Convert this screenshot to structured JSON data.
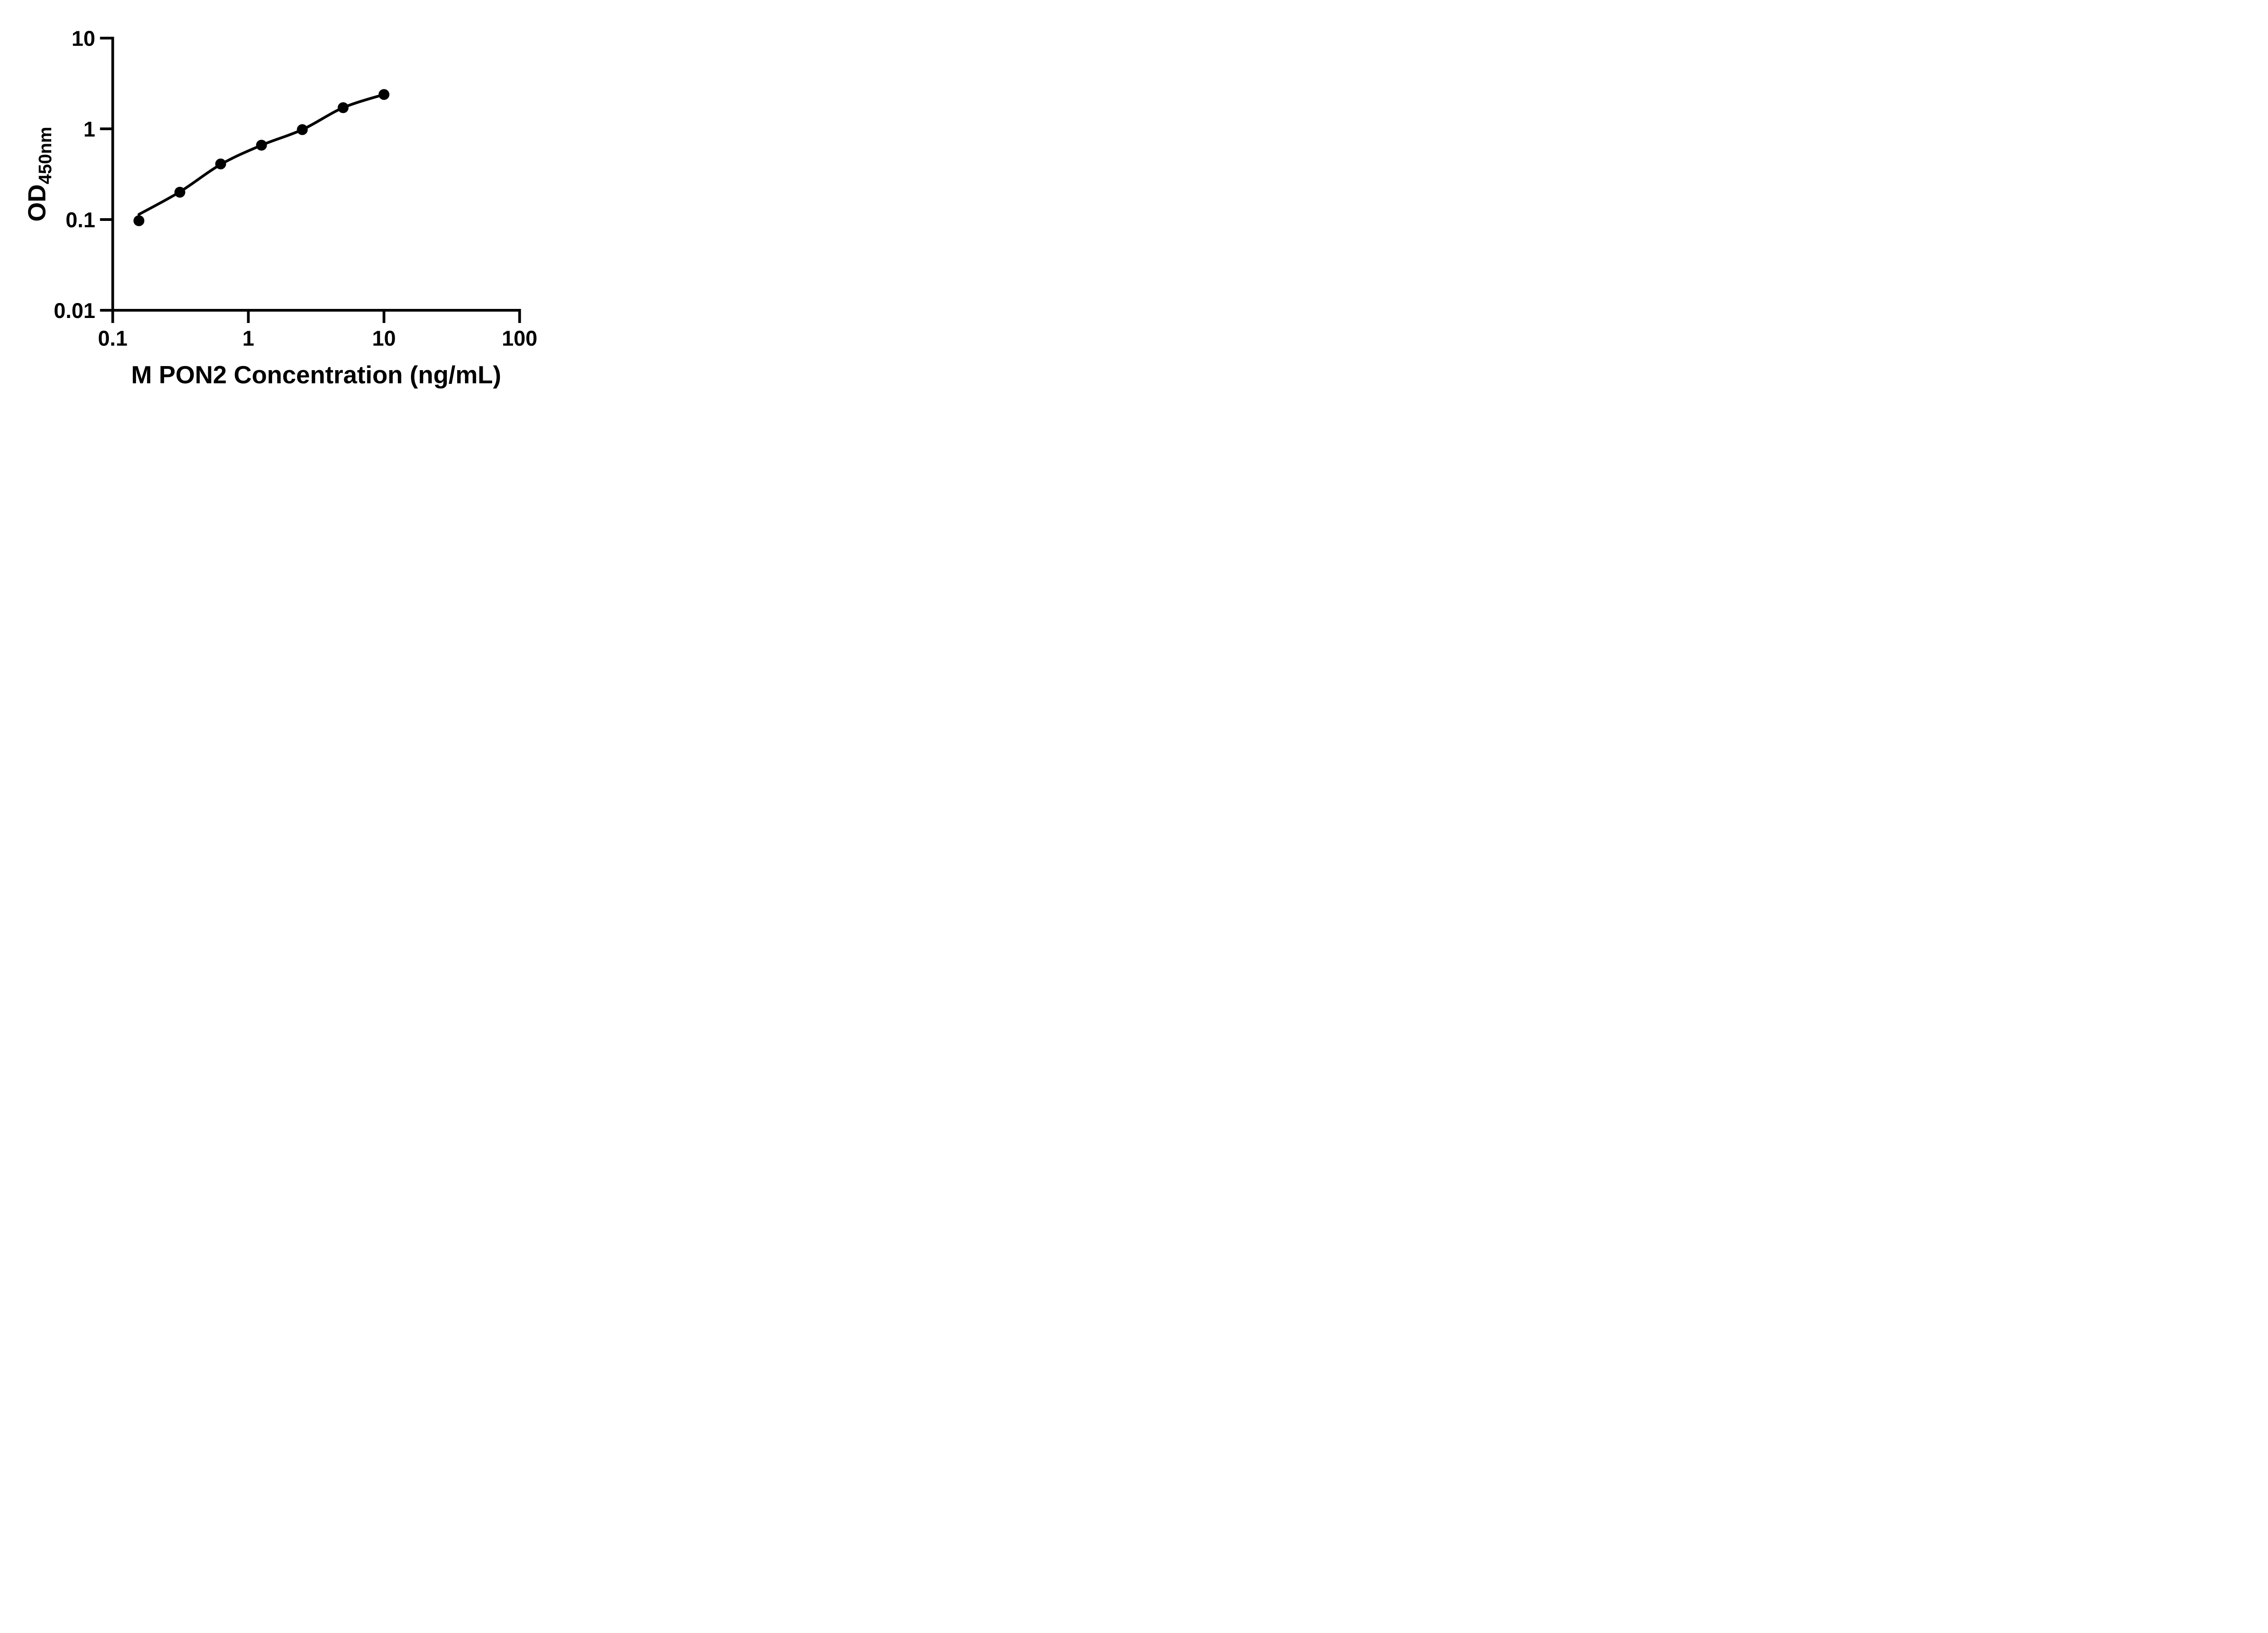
{
  "figure": {
    "background": "#ffffff",
    "ink_color": "#000000"
  },
  "chart_data": {
    "type": "scatter",
    "title": "",
    "xlabel": "M PON2 Concentration (ng/mL)",
    "ylabel_base": "OD",
    "ylabel_subscript": "450nm",
    "x_scale": "log",
    "y_scale": "log",
    "xlim": [
      0.1,
      100
    ],
    "ylim": [
      0.01,
      10
    ],
    "x_tick_values": [
      0.1,
      1,
      10,
      100
    ],
    "x_tick_labels": [
      "0.1",
      "1",
      "10",
      "100"
    ],
    "y_tick_values": [
      0.01,
      0.1,
      1,
      10
    ],
    "y_tick_labels": [
      "0.01",
      "0.1",
      "1",
      "10"
    ],
    "grid": false,
    "legend": "none",
    "series": [
      {
        "name": "M PON2 standard curve points",
        "marker": "circle",
        "color": "#000000",
        "x": [
          0.156,
          0.3125,
          0.625,
          1.25,
          2.5,
          5,
          10
        ],
        "y": [
          0.097,
          0.2,
          0.41,
          0.66,
          0.98,
          1.71,
          2.39
        ]
      }
    ],
    "fit_curve": {
      "name": "4PL fit line",
      "color": "#000000",
      "x": [
        0.156,
        0.3125,
        0.625,
        1.25,
        2.5,
        5,
        10
      ],
      "y": [
        0.114,
        0.202,
        0.405,
        0.66,
        0.98,
        1.71,
        2.39
      ]
    }
  }
}
